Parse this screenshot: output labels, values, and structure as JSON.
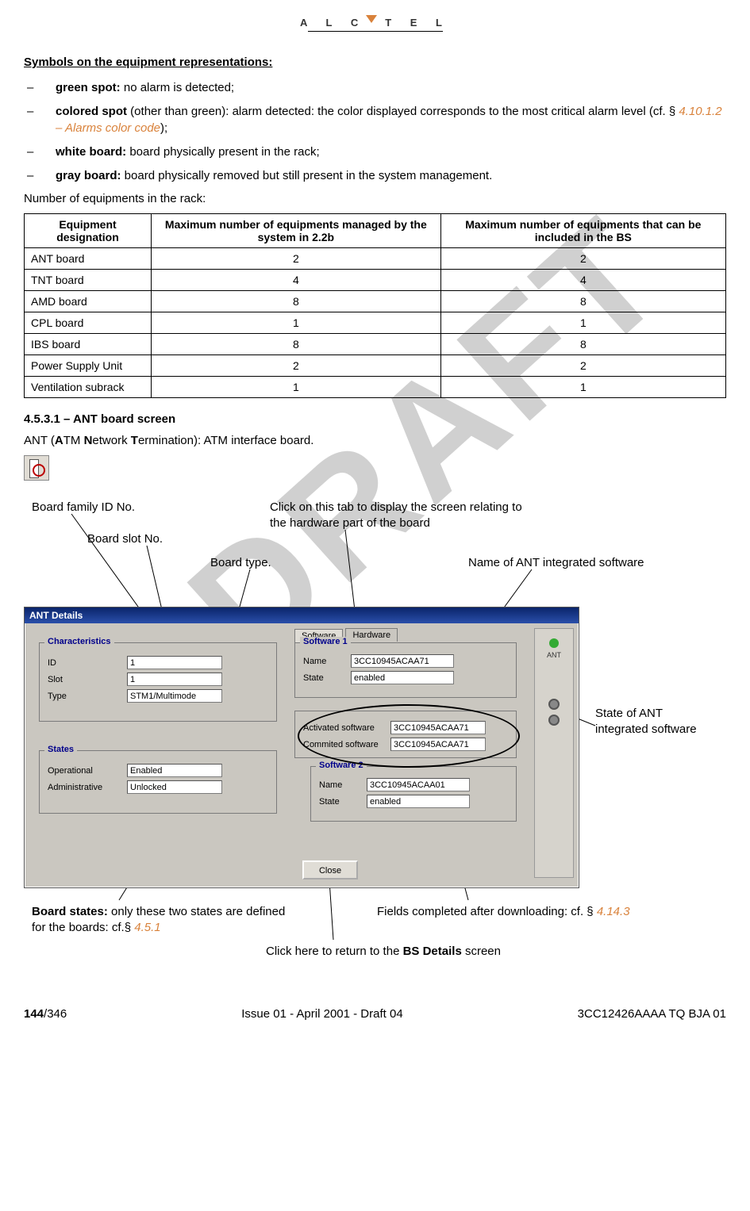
{
  "logo_text": "ALCATEL",
  "section_title": "Symbols on the equipment representations:",
  "bullets": {
    "b1_bold": "green spot:",
    "b1_rest": " no alarm is detected;",
    "b2_bold": "colored spot",
    "b2_rest_a": " (other than green): alarm detected: the color displayed corresponds to the most critical alarm level (cf. § ",
    "b2_xref": "4.10.1.2 – Alarms color code",
    "b2_rest_b": ");",
    "b3_bold": "white board:",
    "b3_rest": " board physically present in the rack;",
    "b4_bold": "gray board:",
    "b4_rest": " board physically removed but still present in the system management."
  },
  "rack_intro": "Number of equipments in the rack:",
  "table": {
    "h1": "Equipment designation",
    "h2": "Maximum number of equipments managed by the system in 2.2b",
    "h3": "Maximum number of equipments that can be included in the BS",
    "rows": [
      {
        "label": "ANT board",
        "c2": "2",
        "c3": "2"
      },
      {
        "label": "TNT board",
        "c2": "4",
        "c3": "4"
      },
      {
        "label": "AMD board",
        "c2": "8",
        "c3": "8"
      },
      {
        "label": "CPL board",
        "c2": "1",
        "c3": "1"
      },
      {
        "label": "IBS board",
        "c2": "8",
        "c3": "8"
      },
      {
        "label": "Power Supply Unit",
        "c2": "2",
        "c3": "2"
      },
      {
        "label": "Ventilation subrack",
        "c2": "1",
        "c3": "1"
      }
    ]
  },
  "subsection_no": "4.5.3.1 –   ANT board screen",
  "ant_line_a": "ANT (",
  "ant_line_b": "A",
  "ant_line_c": "TM ",
  "ant_line_d": "N",
  "ant_line_e": "etwork ",
  "ant_line_f": "T",
  "ant_line_g": "ermination): ATM interface board.",
  "annotations": {
    "board_family": "Board family ID No.",
    "board_slot": "Board slot No.",
    "board_type": "Board  type.",
    "click_tab": "Click on this tab to display the screen relating to the hardware part of the board",
    "name_sw": "Name of ANT integrated software",
    "state_sw": "State of ANT integrated software",
    "board_states_a": "Board states:",
    "board_states_b": " only these two states are defined for the boards: cf.§ ",
    "board_states_ref": "4.5.1",
    "fields_dl_a": "Fields completed after downloading: cf. § ",
    "fields_dl_ref": "4.14.3",
    "close_return_a": "Click here to return to the ",
    "close_return_b": "BS Details",
    "close_return_c": " screen"
  },
  "window": {
    "title": "ANT Details",
    "tabs": {
      "software": "Software",
      "hardware": "Hardware"
    },
    "characteristics": {
      "title": "Characteristics",
      "id_lbl": "ID",
      "id_val": "1",
      "slot_lbl": "Slot",
      "slot_val": "1",
      "type_lbl": "Type",
      "type_val": "STM1/Multimode"
    },
    "states": {
      "title": "States",
      "op_lbl": "Operational",
      "op_val": "Enabled",
      "adm_lbl": "Administrative",
      "adm_val": "Unlocked"
    },
    "software1": {
      "title": "Software 1",
      "name_lbl": "Name",
      "name_val": "3CC10945ACAA71",
      "state_lbl": "State",
      "state_val": "enabled"
    },
    "sw_mid": {
      "act_lbl": "Activated software",
      "act_val": "3CC10945ACAA71",
      "com_lbl": "Commited software",
      "com_val": "3CC10945ACAA71"
    },
    "software2": {
      "title": "Software 2",
      "name_lbl": "Name",
      "name_val": "3CC10945ACAA01",
      "state_lbl": "State",
      "state_val": "enabled"
    },
    "close": "Close",
    "side_lbl": "ANT"
  },
  "watermark": "DRAFT",
  "footer": {
    "page_bold": "144",
    "page_total": "/346",
    "center": "Issue 01 - April 2001 - Draft 04",
    "right": "3CC12426AAAA TQ BJA 01"
  },
  "colors": {
    "xref": "#d9823b"
  }
}
